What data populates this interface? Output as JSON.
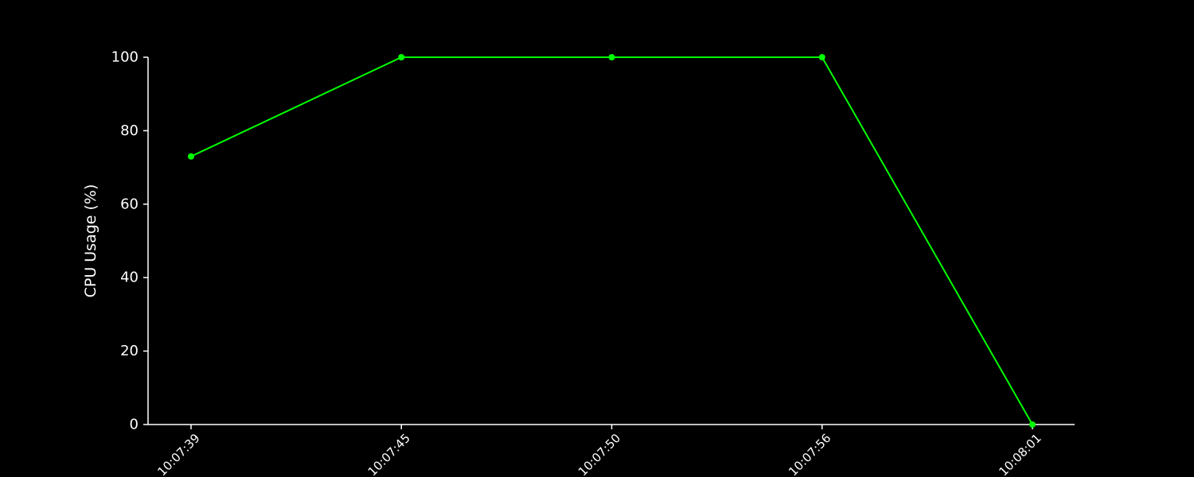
{
  "chart_data": {
    "type": "line",
    "title": "",
    "xlabel": "",
    "ylabel": "CPU Usage (%)",
    "categories": [
      "10:07:39",
      "10:07:45",
      "10:07:50",
      "10:07:56",
      "10:08:01"
    ],
    "series": [
      {
        "values": [
          73,
          100,
          100,
          100,
          0
        ]
      }
    ],
    "ylim": [
      0,
      100
    ],
    "yticks": [
      0,
      20,
      40,
      60,
      80,
      100
    ],
    "grid": false,
    "legend": "none",
    "colors": {
      "background": "#000000",
      "axis": "#ffffff",
      "text": "#ffffff",
      "line": "#00ff00"
    }
  }
}
